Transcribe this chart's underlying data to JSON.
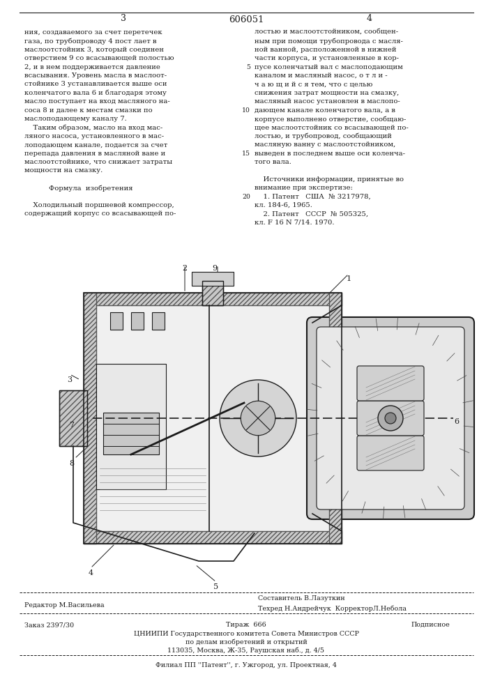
{
  "page_numbers": [
    "3",
    "4"
  ],
  "patent_number": "606051",
  "left_col": [
    [
      "",
      "ния, создаваемого за счет перетечек"
    ],
    [
      "",
      "газа, по трубопроводу 4 пост лает в"
    ],
    [
      "",
      "маслоотстойник 3, который соединен"
    ],
    [
      "",
      "отверстием 9 со всасывающей полостью"
    ],
    [
      "",
      "2, и в нем поддерживается давление"
    ],
    [
      "",
      "всасывания. Уровень масла в маслоот-"
    ],
    [
      "",
      "стойнике 3 устанавливается выше оси"
    ],
    [
      "",
      "коленчатого вала 6 и благодаря этому"
    ],
    [
      "",
      "масло поступает на вход масляного на-"
    ],
    [
      "",
      "соса 8 и далее к местам смазки по"
    ],
    [
      "",
      "маслоподающему каналу 7."
    ],
    [
      "",
      "    Таким образом, масло на вход мас-"
    ],
    [
      "",
      "ляного насоса, установленного в мас-"
    ],
    [
      "",
      "лоподающем канале, подается за счет"
    ],
    [
      "",
      "перепада давления в масляной ване и"
    ],
    [
      "",
      "маслоотстойнике, что снижает затраты"
    ],
    [
      "",
      "мощности на смазку."
    ],
    [
      "",
      ""
    ],
    [
      "",
      "Формула  изобретения"
    ],
    [
      "",
      ""
    ],
    [
      "",
      "    Холодильный поршневой компрессор,"
    ],
    [
      "",
      "содержащий корпус со всасывающей по-"
    ]
  ],
  "right_col": [
    [
      "",
      "лостью и маслоотстойником, сообщен-"
    ],
    [
      "",
      "ным при помощи трубопровода с масля-"
    ],
    [
      "",
      "ной ванной, расположенной в нижней"
    ],
    [
      "",
      "части корпуса, и установленные в кор-"
    ],
    [
      "5",
      "пусе коленчатый вал с маслоподающим"
    ],
    [
      "",
      "каналом и масляный насос, о т л и -"
    ],
    [
      "",
      "ч а ю щ и й с я тем, что с целью"
    ],
    [
      "",
      "снижения затрат мощности на смазку,"
    ],
    [
      "",
      "масляный насос установлен в маслопо-"
    ],
    [
      "10",
      "дающем канале коленчатого вала, а в"
    ],
    [
      "",
      "корпусе выполнено отверстие, сообщаю-"
    ],
    [
      "",
      "щее маслоотстойник со всасывающей по-"
    ],
    [
      "",
      "лостью, и трубопровод, сообщающий"
    ],
    [
      "",
      "масляную ванну с маслоотстойником,"
    ],
    [
      "15",
      "выведен в последнем выше оси коленча-"
    ],
    [
      "",
      "того вала."
    ],
    [
      "",
      ""
    ],
    [
      "",
      "    Источники информации, принятые во"
    ],
    [
      "",
      "внимание при экспертизе:"
    ],
    [
      "20",
      "    1. Патент   США  № 3217978,"
    ],
    [
      "",
      "кл. 184-6, 1965."
    ],
    [
      "",
      "    2. Патент   СССР  № 505325,"
    ],
    [
      "",
      "кл. F 16 N 7/14. 1970."
    ]
  ],
  "footer_left": "Редактор М.Васильева",
  "footer_comp": "Составитель В.Лазуткин",
  "footer_tech": "Техред Н.Андрейчук  КорректорЛ.Небола",
  "footer_order": "Заказ 2397/30",
  "footer_circ": "Тираж  666",
  "footer_sub": "Подписное",
  "footer_org1": "ЦНИИПИ Государственного комитета Совета Министров СССР",
  "footer_org2": "по делам изобретений и открытий",
  "footer_org3": "113035, Москва, Ж-35, Раушская наб., д. 4/5",
  "footer_branch": "Филиал ПП ''Патент'', г. Ужгород, ул. Проектная, 4",
  "bg": "#ffffff",
  "tc": "#1a1a1a"
}
